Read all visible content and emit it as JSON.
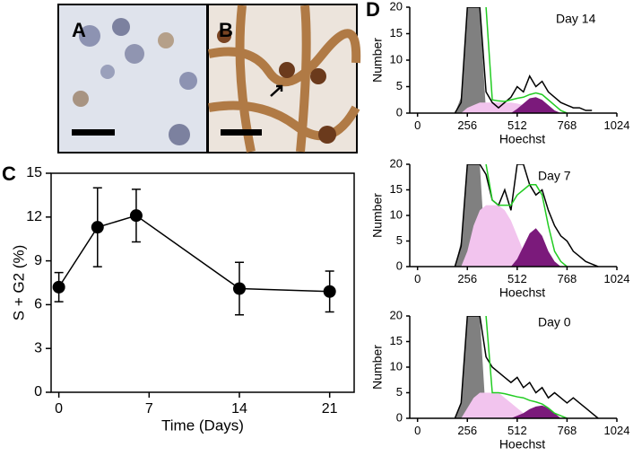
{
  "panel_labels": [
    "A",
    "B",
    "C",
    "D"
  ],
  "chart_data": [
    {
      "type": "line",
      "xlabel": "Time (Days)",
      "ylabel": "S + G2 (%)",
      "x": [
        0,
        3,
        6,
        14,
        21
      ],
      "values": [
        7.2,
        11.3,
        12.1,
        7.1,
        6.9
      ],
      "errors": [
        1.0,
        2.7,
        1.8,
        1.8,
        1.4
      ],
      "color": "#000000",
      "xlim": [
        -0.6,
        22.9
      ],
      "xticks": [
        0,
        7,
        14,
        21
      ],
      "ylim": [
        0,
        15
      ],
      "yticks": [
        0,
        3,
        6,
        9,
        12,
        15
      ]
    },
    {
      "type": "area",
      "annotation": "Day 14",
      "xlabel": "Hoechst",
      "ylabel": "Number",
      "x": [
        0,
        32,
        64,
        96,
        128,
        160,
        192,
        224,
        256,
        288,
        320,
        352,
        384,
        416,
        448,
        480,
        512,
        544,
        576,
        608,
        640,
        672,
        704,
        736,
        768,
        800,
        832,
        864,
        896,
        928,
        960,
        992,
        1024
      ],
      "xlim": [
        -40,
        1024
      ],
      "xticks": [
        0,
        256,
        512,
        768,
        1024
      ],
      "ylim": [
        0,
        20
      ],
      "yticks": [
        0,
        5,
        10,
        15,
        20
      ],
      "series": [
        {
          "color": "#808080",
          "fill": true,
          "values": [
            null,
            null,
            null,
            null,
            null,
            null,
            0,
            3,
            20,
            20,
            20,
            0,
            null,
            null,
            null,
            null,
            null,
            null,
            null,
            null,
            null,
            null,
            null,
            null,
            null,
            null,
            null,
            null,
            null,
            null,
            null,
            null,
            null
          ]
        },
        {
          "color": "#f2c4ee",
          "fill": true,
          "values": [
            null,
            null,
            null,
            null,
            null,
            null,
            null,
            0,
            1,
            1.5,
            2,
            2,
            2,
            2,
            2,
            2,
            1.8,
            1.5,
            1.2,
            1,
            0.6,
            0.3,
            0,
            null,
            null,
            null,
            null,
            null,
            null,
            null,
            null,
            null,
            null
          ]
        },
        {
          "color": "#7b1a7b",
          "fill": true,
          "values": [
            null,
            null,
            null,
            null,
            null,
            null,
            null,
            null,
            null,
            null,
            null,
            null,
            null,
            null,
            null,
            0,
            0.8,
            1.8,
            2.8,
            3,
            2.5,
            1.5,
            0.5,
            0,
            null,
            null,
            null,
            null,
            null,
            null,
            null,
            null,
            null
          ]
        },
        {
          "color": "#000000",
          "fill": false,
          "values": [
            null,
            null,
            null,
            null,
            null,
            null,
            0,
            2,
            20,
            20,
            20,
            4,
            2,
            1,
            2,
            3,
            5,
            4,
            7,
            5,
            6,
            4,
            3,
            2,
            1.5,
            1,
            1,
            0.5,
            0.5,
            null,
            null,
            null,
            null
          ]
        },
        {
          "color": "#22cc22",
          "fill": false,
          "values": [
            null,
            null,
            null,
            null,
            null,
            null,
            null,
            null,
            null,
            null,
            null,
            20,
            2.5,
            2.3,
            2.2,
            2.5,
            2.8,
            3,
            3.5,
            3.8,
            3.5,
            2.5,
            1.5,
            0.5,
            0,
            null,
            null,
            null,
            null,
            null,
            null,
            null,
            null
          ]
        }
      ]
    },
    {
      "type": "area",
      "annotation": "Day 7",
      "xlabel": "Hoechst",
      "ylabel": "Number",
      "x": [
        0,
        32,
        64,
        96,
        128,
        160,
        192,
        224,
        256,
        288,
        320,
        352,
        384,
        416,
        448,
        480,
        512,
        544,
        576,
        608,
        640,
        672,
        704,
        736,
        768,
        800,
        832,
        864,
        896,
        928,
        960,
        992,
        1024
      ],
      "xlim": [
        -40,
        1024
      ],
      "xticks": [
        0,
        256,
        512,
        768,
        1024
      ],
      "ylim": [
        0,
        20
      ],
      "yticks": [
        0,
        5,
        10,
        15,
        20
      ],
      "series": [
        {
          "color": "#808080",
          "fill": true,
          "values": [
            null,
            null,
            null,
            null,
            null,
            null,
            0,
            5,
            20,
            20,
            20,
            0,
            null,
            null,
            null,
            null,
            null,
            null,
            null,
            null,
            null,
            null,
            null,
            null,
            null,
            null,
            null,
            null,
            null,
            null,
            null,
            null,
            null
          ]
        },
        {
          "color": "#f2c4ee",
          "fill": true,
          "values": [
            null,
            null,
            null,
            null,
            null,
            null,
            null,
            0,
            3,
            8,
            11,
            12,
            12,
            12,
            11,
            9,
            6,
            3,
            1,
            0,
            null,
            null,
            null,
            null,
            null,
            null,
            null,
            null,
            null,
            null,
            null,
            null,
            null
          ]
        },
        {
          "color": "#7b1a7b",
          "fill": true,
          "values": [
            null,
            null,
            null,
            null,
            null,
            null,
            null,
            null,
            null,
            null,
            null,
            null,
            null,
            null,
            null,
            0,
            1.5,
            4,
            6.5,
            7.5,
            6,
            3,
            1,
            0,
            null,
            null,
            null,
            null,
            null,
            null,
            null,
            null,
            null
          ]
        },
        {
          "color": "#000000",
          "fill": false,
          "values": [
            null,
            null,
            null,
            null,
            null,
            null,
            0,
            4,
            20,
            20,
            20,
            18,
            13,
            12,
            15,
            11,
            20,
            20,
            16,
            14,
            15,
            11,
            8,
            6,
            5,
            3,
            2,
            1,
            0.5,
            0,
            null,
            null,
            null
          ]
        },
        {
          "color": "#22cc22",
          "fill": false,
          "values": [
            null,
            null,
            null,
            null,
            null,
            null,
            null,
            null,
            null,
            null,
            null,
            20,
            13,
            12,
            12,
            12,
            14,
            15,
            16,
            16,
            14,
            8,
            3,
            1,
            0,
            null,
            null,
            null,
            null,
            null,
            null,
            null,
            null
          ]
        }
      ]
    },
    {
      "type": "area",
      "annotation": "Day 0",
      "xlabel": "Hoechst",
      "ylabel": "Number",
      "x": [
        0,
        32,
        64,
        96,
        128,
        160,
        192,
        224,
        256,
        288,
        320,
        352,
        384,
        416,
        448,
        480,
        512,
        544,
        576,
        608,
        640,
        672,
        704,
        736,
        768,
        800,
        832,
        864,
        896,
        928,
        960,
        992,
        1024
      ],
      "xlim": [
        -40,
        1024
      ],
      "xticks": [
        0,
        256,
        512,
        768,
        1024
      ],
      "ylim": [
        0,
        20
      ],
      "yticks": [
        0,
        5,
        10,
        15,
        20
      ],
      "series": [
        {
          "color": "#808080",
          "fill": true,
          "values": [
            null,
            null,
            null,
            null,
            null,
            null,
            0,
            3,
            20,
            20,
            20,
            0,
            null,
            null,
            null,
            null,
            null,
            null,
            null,
            null,
            null,
            null,
            null,
            null,
            null,
            null,
            null,
            null,
            null,
            null,
            null,
            null,
            null
          ]
        },
        {
          "color": "#f2c4ee",
          "fill": true,
          "values": [
            null,
            null,
            null,
            null,
            null,
            null,
            null,
            0,
            2,
            4,
            5,
            5,
            5,
            5,
            4,
            3,
            2,
            1,
            0.5,
            0,
            null,
            null,
            null,
            null,
            null,
            null,
            null,
            null,
            null,
            null,
            null,
            null,
            null
          ]
        },
        {
          "color": "#7b1a7b",
          "fill": true,
          "values": [
            null,
            null,
            null,
            null,
            null,
            null,
            null,
            null,
            null,
            null,
            null,
            null,
            null,
            null,
            null,
            0,
            0.5,
            1,
            1.8,
            2.3,
            2.5,
            2,
            1,
            0,
            null,
            null,
            null,
            null,
            null,
            null,
            null,
            null,
            null
          ]
        },
        {
          "color": "#000000",
          "fill": false,
          "values": [
            null,
            null,
            null,
            null,
            null,
            null,
            0,
            3,
            20,
            20,
            20,
            12,
            10,
            9,
            8,
            7,
            8,
            6,
            7,
            5,
            6,
            4,
            5,
            4,
            3,
            4,
            3,
            2,
            1,
            0,
            null,
            null,
            null
          ]
        },
        {
          "color": "#22cc22",
          "fill": false,
          "values": [
            null,
            null,
            null,
            null,
            null,
            null,
            null,
            null,
            null,
            null,
            null,
            20,
            5,
            5,
            4.8,
            4.5,
            4.2,
            4,
            3.5,
            3.2,
            2.8,
            2,
            1,
            0.5,
            0,
            null,
            null,
            null,
            null,
            null,
            null,
            null,
            null
          ]
        }
      ]
    }
  ]
}
